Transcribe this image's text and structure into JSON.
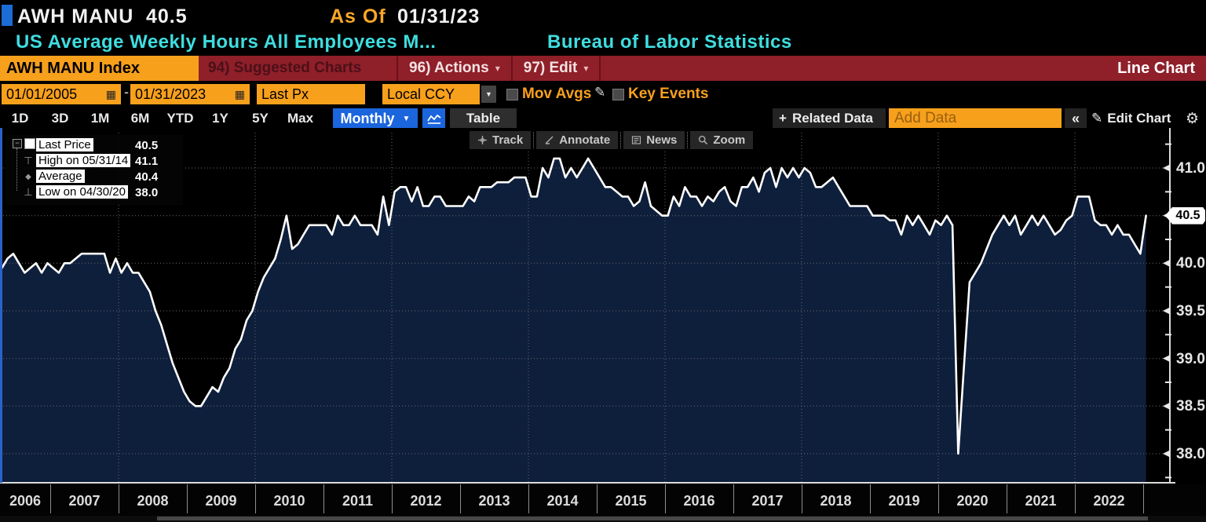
{
  "header": {
    "ticker": "AWH MANU",
    "last_value": "40.5",
    "as_of_label": "As Of",
    "as_of_date": "01/31/23",
    "description": "US Average Weekly Hours All Employees M...",
    "source": "Bureau of Labor Statistics"
  },
  "toolbar": {
    "security_tab": "AWH MANU Index",
    "suggested_charts": "94) Suggested Charts",
    "actions": "96) Actions",
    "edit": "97) Edit",
    "chart_type": "Line Chart"
  },
  "controls": {
    "date_from": "01/01/2005",
    "date_to": "01/31/2023",
    "range_separator": "-",
    "field": "Last Px",
    "currency": "Local CCY",
    "mov_avgs_label": "Mov Avgs",
    "key_events_label": "Key Events"
  },
  "tabs": {
    "periods": [
      "1D",
      "3D",
      "1M",
      "6M",
      "YTD",
      "1Y",
      "5Y",
      "Max"
    ],
    "frequency": "Monthly",
    "table_label": "Table",
    "related_data_label": "Related Data",
    "add_data_placeholder": "Add Data",
    "collapse_label": "«",
    "edit_chart_label": "Edit Chart"
  },
  "icons": {
    "calendar": "▦",
    "dropdown": "▼",
    "menu_arrow": "▾",
    "pencil": "✎",
    "gear": "⚙",
    "plus": "+",
    "legend_expand": "−",
    "high_marker": "⊤",
    "avg_marker": "◆",
    "low_marker": "⊥"
  },
  "chart_tools": [
    "Track",
    "Annotate",
    "News",
    "Zoom"
  ],
  "legend": {
    "rows": [
      {
        "label": "Last Price",
        "value": "40.5"
      },
      {
        "label": "High on 05/31/14",
        "value": "41.1"
      },
      {
        "label": "Average",
        "value": "40.4"
      },
      {
        "label": "Low on 04/30/20",
        "value": "38.0"
      }
    ]
  },
  "chart_data": {
    "type": "line",
    "title": "US Average Weekly Hours All Employees Manufacturing (AWH MANU Index)",
    "series_name": "Last Price",
    "frequency": "monthly",
    "start": "2006-03",
    "end": "2023-01",
    "values": [
      40.0,
      39.95,
      40.05,
      40.1,
      40.0,
      39.9,
      39.95,
      40.0,
      39.9,
      40.0,
      39.95,
      39.9,
      40.0,
      40.0,
      40.05,
      40.1,
      40.1,
      40.1,
      40.1,
      40.1,
      39.9,
      40.05,
      39.9,
      40.0,
      39.9,
      39.9,
      39.8,
      39.7,
      39.5,
      39.35,
      39.15,
      38.95,
      38.8,
      38.65,
      38.55,
      38.5,
      38.5,
      38.6,
      38.7,
      38.65,
      38.8,
      38.9,
      39.1,
      39.2,
      39.4,
      39.5,
      39.7,
      39.85,
      39.95,
      40.05,
      40.25,
      40.5,
      40.15,
      40.2,
      40.3,
      40.4,
      40.4,
      40.4,
      40.4,
      40.3,
      40.5,
      40.4,
      40.4,
      40.5,
      40.4,
      40.4,
      40.4,
      40.3,
      40.7,
      40.4,
      40.75,
      40.8,
      40.8,
      40.65,
      40.8,
      40.6,
      40.6,
      40.7,
      40.7,
      40.6,
      40.6,
      40.6,
      40.6,
      40.7,
      40.65,
      40.8,
      40.8,
      40.8,
      40.85,
      40.85,
      40.85,
      40.9,
      40.9,
      40.9,
      40.7,
      40.7,
      41.0,
      40.9,
      41.1,
      41.1,
      40.9,
      41.0,
      40.9,
      41.0,
      41.1,
      41.0,
      40.9,
      40.8,
      40.8,
      40.75,
      40.7,
      40.7,
      40.6,
      40.65,
      40.85,
      40.6,
      40.55,
      40.5,
      40.5,
      40.7,
      40.6,
      40.8,
      40.7,
      40.7,
      40.6,
      40.7,
      40.65,
      40.75,
      40.8,
      40.65,
      40.6,
      40.8,
      40.8,
      40.9,
      40.75,
      40.95,
      41.0,
      40.8,
      41.0,
      40.9,
      41.0,
      40.9,
      41.0,
      40.95,
      40.8,
      40.8,
      40.85,
      40.9,
      40.8,
      40.7,
      40.6,
      40.6,
      40.6,
      40.6,
      40.5,
      40.5,
      40.5,
      40.45,
      40.45,
      40.3,
      40.5,
      40.4,
      40.5,
      40.4,
      40.3,
      40.45,
      40.4,
      40.5,
      40.4,
      38.0,
      38.9,
      39.8,
      39.9,
      40.0,
      40.15,
      40.3,
      40.4,
      40.5,
      40.4,
      40.5,
      40.3,
      40.4,
      40.5,
      40.4,
      40.5,
      40.4,
      40.3,
      40.35,
      40.45,
      40.5,
      40.7,
      40.7,
      40.7,
      40.45,
      40.4,
      40.4,
      40.3,
      40.4,
      40.3,
      40.3,
      40.2,
      40.1,
      40.5
    ],
    "stats": {
      "last_price": 40.5,
      "high": {
        "value": 41.1,
        "date": "05/31/14"
      },
      "average": 40.4,
      "low": {
        "value": 38.0,
        "date": "04/30/20"
      }
    },
    "xlabel": "",
    "ylabel": "",
    "x_axis_years": [
      2006,
      2007,
      2008,
      2009,
      2010,
      2011,
      2012,
      2013,
      2014,
      2015,
      2016,
      2017,
      2018,
      2019,
      2020,
      2021,
      2022
    ],
    "x_gridline_years": [
      2008,
      2010,
      2012,
      2014,
      2016,
      2018,
      2020,
      2022
    ],
    "x_start_year": 2006,
    "start_month_offset": 2,
    "y_axis_labels": [
      "41.0",
      "40.0",
      "39.5",
      "39.0",
      "38.5",
      "38.0"
    ],
    "y_tag_value": "40.5",
    "ylim": [
      37.7,
      41.4
    ],
    "y_tick_step": 0.5,
    "grid": true,
    "legend_position": "top-left",
    "line_color": "#ffffff",
    "fill_color": "#0e1f3c"
  }
}
